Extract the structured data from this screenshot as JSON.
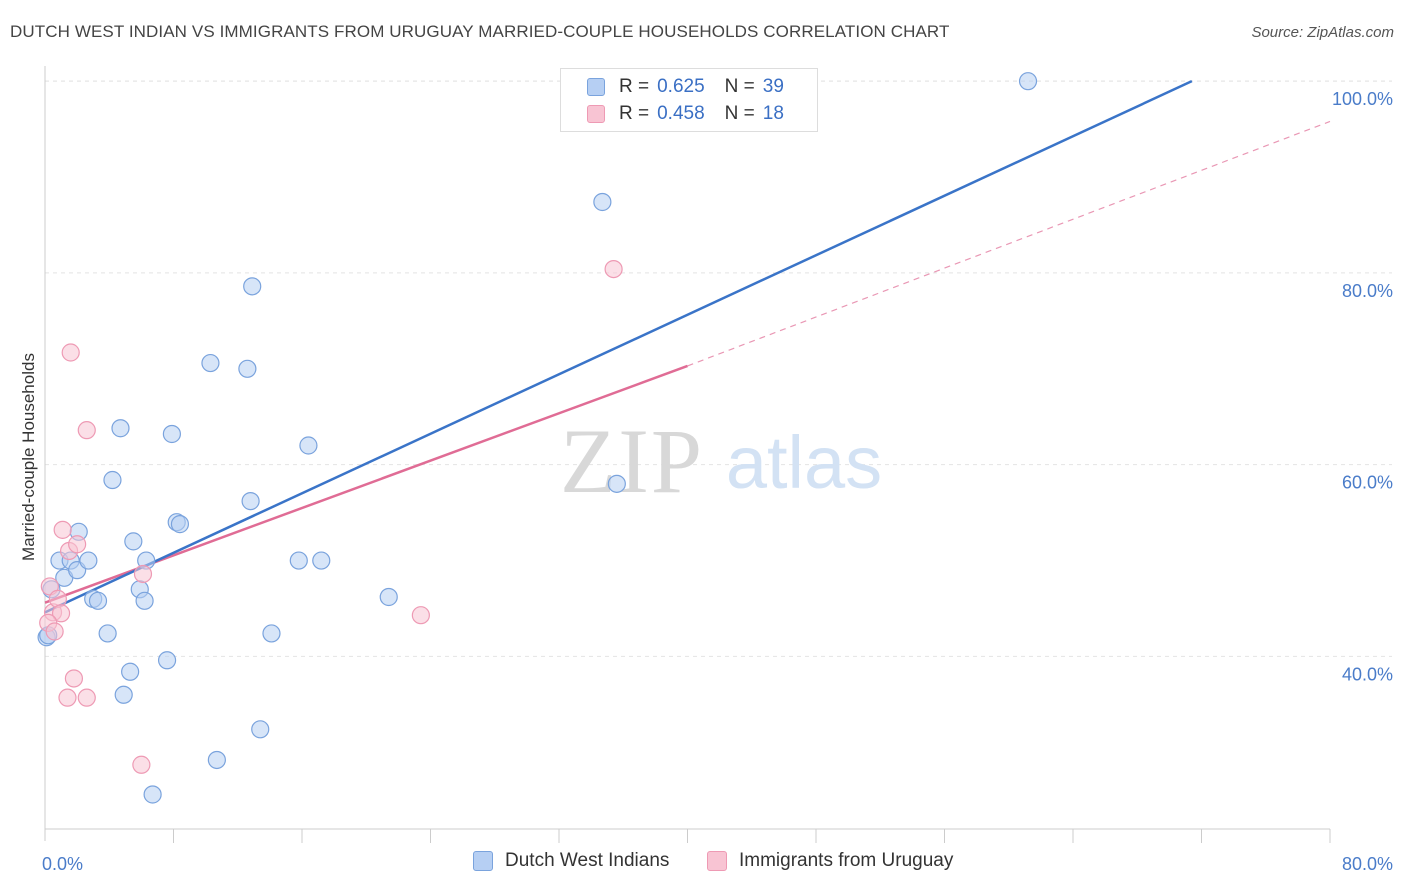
{
  "title": "DUTCH WEST INDIAN VS IMMIGRANTS FROM URUGUAY MARRIED-COUPLE HOUSEHOLDS CORRELATION CHART",
  "source": "Source: ZipAtlas.com",
  "watermark": {
    "zip": "ZIP",
    "atlas": "atlas"
  },
  "legend_top": [
    {
      "r_label": "R =",
      "r_value": "0.625",
      "n_label": "N =",
      "n_value": "39"
    },
    {
      "r_label": "R =",
      "r_value": "0.458",
      "n_label": "N =",
      "n_value": "18"
    }
  ],
  "legend_bottom": [
    {
      "label": "Dutch West Indians"
    },
    {
      "label": "Immigrants from Uruguay"
    }
  ],
  "colors": {
    "blue_fill": "#b6cff3",
    "blue_stroke": "#7aa3dd",
    "blue_line": "#3a74c8",
    "pink_fill": "#f8c4d3",
    "pink_stroke": "#ee9ab4",
    "pink_line": "#e06c95",
    "tick_text": "#4a7cc9",
    "grid": "#e4e4e4"
  },
  "chart_data": {
    "type": "scatter",
    "xlabel": "",
    "ylabel": "Married-couple Households",
    "xlim": [
      0,
      80
    ],
    "ylim": [
      22,
      102
    ],
    "x_tick_labels": [
      {
        "value": 0,
        "label": "0.0%"
      },
      {
        "value": 80,
        "label": "80.0%"
      }
    ],
    "x_minor_ticks": [
      8,
      16,
      24,
      32,
      40,
      48,
      56,
      64,
      72,
      80
    ],
    "y_tick_labels": [
      {
        "value": 40,
        "label": "40.0%"
      },
      {
        "value": 60,
        "label": "60.0%"
      },
      {
        "value": 80,
        "label": "80.0%"
      },
      {
        "value": 100,
        "label": "100.0%"
      }
    ],
    "series": [
      {
        "name": "Dutch West Indians",
        "color": "blue",
        "points": [
          [
            0.1,
            42.0
          ],
          [
            0.4,
            47.0
          ],
          [
            0.9,
            50.0
          ],
          [
            1.2,
            48.2
          ],
          [
            1.6,
            50.0
          ],
          [
            2.1,
            53.0
          ],
          [
            2.0,
            49.0
          ],
          [
            2.7,
            50.0
          ],
          [
            3.0,
            46.0
          ],
          [
            3.3,
            45.8
          ],
          [
            3.9,
            42.4
          ],
          [
            4.2,
            58.4
          ],
          [
            4.7,
            63.8
          ],
          [
            4.9,
            36.0
          ],
          [
            5.3,
            38.4
          ],
          [
            5.5,
            52.0
          ],
          [
            5.9,
            47.0
          ],
          [
            6.2,
            45.8
          ],
          [
            6.3,
            50.0
          ],
          [
            6.7,
            25.6
          ],
          [
            7.6,
            39.6
          ],
          [
            7.9,
            63.2
          ],
          [
            8.2,
            54.0
          ],
          [
            8.4,
            53.8
          ],
          [
            10.3,
            70.6
          ],
          [
            10.7,
            29.2
          ],
          [
            12.6,
            70.0
          ],
          [
            12.8,
            56.2
          ],
          [
            12.9,
            78.6
          ],
          [
            13.4,
            32.4
          ],
          [
            14.1,
            42.4
          ],
          [
            16.4,
            62.0
          ],
          [
            15.8,
            50.0
          ],
          [
            17.2,
            50.0
          ],
          [
            21.4,
            46.2
          ],
          [
            34.7,
            87.4
          ],
          [
            35.6,
            58.0
          ],
          [
            61.2,
            100.0
          ],
          [
            0.2,
            42.2
          ]
        ],
        "trendline": {
          "x": [
            0,
            71.4
          ],
          "y": [
            44.6,
            100.0
          ]
        }
      },
      {
        "name": "Immigrants from Uruguay",
        "color": "pink",
        "points": [
          [
            0.3,
            47.3
          ],
          [
            0.5,
            44.6
          ],
          [
            0.8,
            46.0
          ],
          [
            1.0,
            44.5
          ],
          [
            1.1,
            53.2
          ],
          [
            1.5,
            51.0
          ],
          [
            1.6,
            71.7
          ],
          [
            1.8,
            37.7
          ],
          [
            2.0,
            51.7
          ],
          [
            2.6,
            63.6
          ],
          [
            1.4,
            35.7
          ],
          [
            2.6,
            35.7
          ],
          [
            6.0,
            28.7
          ],
          [
            6.1,
            48.6
          ],
          [
            23.4,
            44.3
          ],
          [
            35.4,
            80.4
          ],
          [
            0.2,
            43.5
          ],
          [
            0.6,
            42.6
          ]
        ],
        "trendline": {
          "x": [
            0,
            40
          ],
          "y": [
            45.6,
            70.3
          ]
        },
        "trendline_extension": {
          "x": [
            40,
            80
          ],
          "y": [
            70.3,
            95.8
          ]
        }
      }
    ]
  }
}
